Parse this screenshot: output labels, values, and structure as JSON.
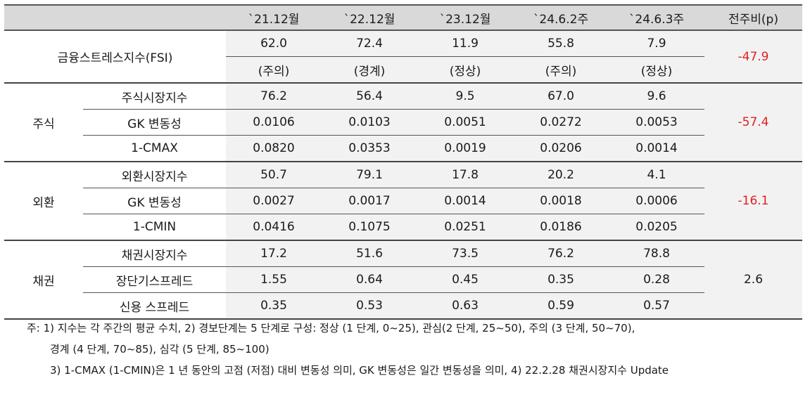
{
  "header": {
    "blank": "",
    "cols": [
      "`21.12월",
      "`22.12월",
      "`23.12월",
      "`24.6.2주",
      "`24.6.3주"
    ],
    "diff": "전주비(p)"
  },
  "fsi": {
    "label": "금융스트레스지수(FSI)",
    "values": [
      "62.0",
      "72.4",
      "11.9",
      "55.8",
      "7.9"
    ],
    "stages": [
      "(주의)",
      "(경계)",
      "(정상)",
      "(주의)",
      "(정상)"
    ],
    "diff": "-47.9"
  },
  "groups": [
    {
      "name": "주식",
      "diff": "-57.4",
      "rows": [
        {
          "label": "주식시장지수",
          "values": [
            "76.2",
            "56.4",
            "9.5",
            "67.0",
            "9.6"
          ]
        },
        {
          "label": "GK 변동성",
          "values": [
            "0.0106",
            "0.0103",
            "0.0051",
            "0.0272",
            "0.0053"
          ]
        },
        {
          "label": "1-CMAX",
          "values": [
            "0.0820",
            "0.0353",
            "0.0019",
            "0.0206",
            "0.0014"
          ]
        }
      ]
    },
    {
      "name": "외환",
      "diff": "-16.1",
      "rows": [
        {
          "label": "외환시장지수",
          "values": [
            "50.7",
            "79.1",
            "17.8",
            "20.2",
            "4.1"
          ]
        },
        {
          "label": "GK 변동성",
          "values": [
            "0.0027",
            "0.0017",
            "0.0014",
            "0.0018",
            "0.0006"
          ]
        },
        {
          "label": "1-CMIN",
          "values": [
            "0.0416",
            "0.1075",
            "0.0251",
            "0.0186",
            "0.0205"
          ]
        }
      ]
    },
    {
      "name": "채권",
      "diff": "2.6",
      "rows": [
        {
          "label": "채권시장지수",
          "values": [
            "17.2",
            "51.6",
            "73.5",
            "76.2",
            "78.8"
          ]
        },
        {
          "label": "장단기스프레드",
          "values": [
            "1.55",
            "0.64",
            "0.45",
            "0.35",
            "0.28"
          ]
        },
        {
          "label": "신용 스프레드",
          "values": [
            "0.35",
            "0.53",
            "0.63",
            "0.59",
            "0.57"
          ]
        }
      ]
    }
  ],
  "notes": [
    "주: 1) 지수는 각 주간의 평균 수치, 2) 경보단계는 5 단계로 구성: 정상 (1 단계, 0~25), 관심(2 단계, 25~50), 주의 (3 단계, 50~70),",
    "경계 (4 단계, 70~85), 심각 (5 단계, 85~100)",
    "3) 1-CMAX (1-CMIN)은 1 년 동안의 고점 (저점) 대비 변동성 의미, GK 변동성은 일간 변동성을 의미, 4) 22.2.28 채권시장지수 Update"
  ]
}
